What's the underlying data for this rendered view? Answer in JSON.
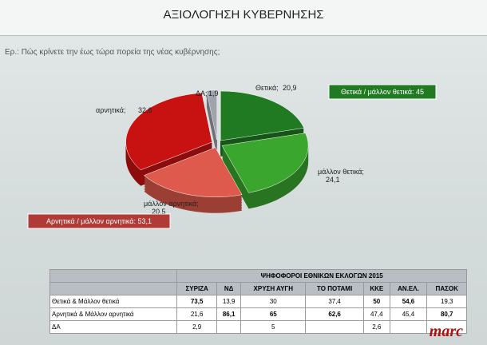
{
  "header": {
    "title": "ΑΞΙΟΛΟΓΗΣΗ ΚΥΒΕΡΝΗΣΗΣ",
    "question": "Ερ.: Πώς κρίνετε την έως τώρα πορεία της νέας κυβέρνησης;",
    "logo": "marc"
  },
  "chart_data": {
    "type": "pie",
    "categories": [
      "Θετικά;",
      "μάλλον θετικά;",
      "μάλλον αρνητικά;",
      "αρνητικά;",
      "ΔΑ;"
    ],
    "values": [
      20.9,
      24.1,
      20.5,
      32.6,
      1.9
    ],
    "value_labels": [
      "20,9",
      "24,1",
      "20,5",
      "32,6",
      "1,9"
    ],
    "colors": [
      "#1f7a22",
      "#3aa62e",
      "#de5a4c",
      "#c81212",
      "#9ea4ac"
    ],
    "annotations": [
      "Θετικά / μάλλον θετικά: 45",
      "Αρνητικά / μάλλον αρνητικά: 53,1"
    ]
  },
  "table": {
    "header": "ΨΗΦΟΦΟΡΟΙ ΕΘΝΙΚΩΝ ΕΚΛΟΓΩΝ 2015",
    "columns": [
      "ΣΥΡΙΖΑ",
      "ΝΔ",
      "ΧΡΥΣΗ ΑΥΓΗ",
      "ΤΟ ΠΟΤΑΜΙ",
      "ΚΚΕ",
      "ΑΝ.ΕΛ.",
      "ΠΑΣΟΚ"
    ],
    "rows": [
      {
        "label": "Θετικά & Μάλλον θετικά",
        "cells": [
          "73,5",
          "13,9",
          "30",
          "37,4",
          "50",
          "54,6",
          "19,3"
        ],
        "bold": [
          true,
          false,
          false,
          false,
          true,
          true,
          false
        ]
      },
      {
        "label": "Αρνητικά & Μάλλον αρνητικά",
        "cells": [
          "21,6",
          "86,1",
          "65",
          "62,6",
          "47,4",
          "45,4",
          "80,7"
        ],
        "bold": [
          false,
          true,
          true,
          true,
          false,
          false,
          true
        ]
      },
      {
        "label": "ΔΑ",
        "cells": [
          "2,9",
          null,
          "5",
          null,
          "2,6",
          null,
          null
        ],
        "bold": [
          false,
          false,
          false,
          false,
          false,
          false,
          false
        ]
      }
    ]
  }
}
